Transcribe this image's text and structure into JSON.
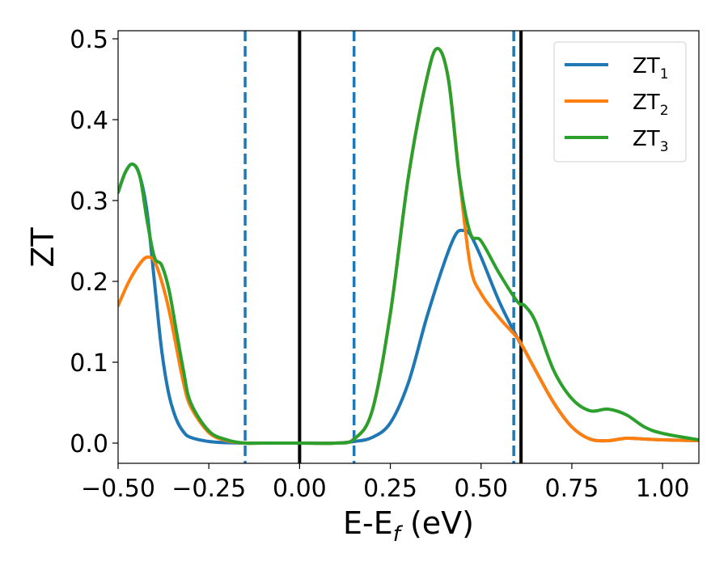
{
  "chart_data": {
    "type": "line",
    "xlabel_base": "E-E",
    "xlabel_sub": "f",
    "xlabel_unit": " (eV)",
    "ylabel": "ZT",
    "xlim": [
      -0.5,
      1.1
    ],
    "ylim": [
      -0.025,
      0.51
    ],
    "x_ticks": [
      -0.5,
      -0.25,
      0.0,
      0.25,
      0.5,
      0.75,
      1.0
    ],
    "x_tick_labels": [
      "−0.50",
      "−0.25",
      "0.00",
      "0.25",
      "0.50",
      "0.75",
      "1.00"
    ],
    "y_ticks": [
      0.0,
      0.1,
      0.2,
      0.3,
      0.4,
      0.5
    ],
    "y_tick_labels": [
      "0.0",
      "0.1",
      "0.2",
      "0.3",
      "0.4",
      "0.5"
    ],
    "grid": false,
    "legend_position": "top-right",
    "vlines": [
      {
        "x": -0.15,
        "style": "dashed",
        "color": "#1f77b4"
      },
      {
        "x": 0.15,
        "style": "dashed",
        "color": "#1f77b4"
      },
      {
        "x": 0.59,
        "style": "dashed",
        "color": "#1f77b4"
      },
      {
        "x": 0.0,
        "style": "solid",
        "color": "#000000"
      },
      {
        "x": 0.61,
        "style": "solid",
        "color": "#000000"
      }
    ],
    "series": [
      {
        "name_base": "ZT",
        "name_sub": "1",
        "color": "#1f77b4",
        "points": [
          [
            -0.5,
            0.31
          ],
          [
            -0.48,
            0.335
          ],
          [
            -0.46,
            0.345
          ],
          [
            -0.44,
            0.33
          ],
          [
            -0.42,
            0.285
          ],
          [
            -0.4,
            0.2
          ],
          [
            -0.38,
            0.115
          ],
          [
            -0.36,
            0.06
          ],
          [
            -0.34,
            0.03
          ],
          [
            -0.32,
            0.014
          ],
          [
            -0.3,
            0.007
          ],
          [
            -0.25,
            0.002
          ],
          [
            -0.2,
            0.0005
          ],
          [
            -0.15,
            0.0
          ],
          [
            -0.1,
            0.0
          ],
          [
            0.0,
            0.0
          ],
          [
            0.1,
            0.0
          ],
          [
            0.15,
            0.002
          ],
          [
            0.2,
            0.007
          ],
          [
            0.25,
            0.025
          ],
          [
            0.3,
            0.075
          ],
          [
            0.35,
            0.155
          ],
          [
            0.4,
            0.225
          ],
          [
            0.43,
            0.258
          ],
          [
            0.45,
            0.263
          ],
          [
            0.47,
            0.258
          ],
          [
            0.5,
            0.23
          ],
          [
            0.55,
            0.175
          ],
          [
            0.6,
            0.13
          ],
          [
            0.62,
            0.115
          ],
          [
            0.65,
            0.09
          ],
          [
            0.7,
            0.05
          ],
          [
            0.75,
            0.02
          ],
          [
            0.8,
            0.005
          ],
          [
            0.85,
            0.003
          ],
          [
            0.9,
            0.006
          ],
          [
            0.95,
            0.005
          ],
          [
            1.0,
            0.004
          ],
          [
            1.1,
            0.003
          ]
        ]
      },
      {
        "name_base": "ZT",
        "name_sub": "2",
        "color": "#ff7f0e",
        "points": [
          [
            -0.5,
            0.17
          ],
          [
            -0.47,
            0.2
          ],
          [
            -0.44,
            0.222
          ],
          [
            -0.42,
            0.23
          ],
          [
            -0.4,
            0.225
          ],
          [
            -0.38,
            0.2
          ],
          [
            -0.36,
            0.165
          ],
          [
            -0.34,
            0.12
          ],
          [
            -0.32,
            0.075
          ],
          [
            -0.3,
            0.045
          ],
          [
            -0.25,
            0.013
          ],
          [
            -0.2,
            0.003
          ],
          [
            -0.15,
            0.0
          ],
          [
            -0.1,
            0.0
          ],
          [
            0.0,
            0.0
          ],
          [
            0.1,
            0.0
          ],
          [
            0.15,
            0.005
          ],
          [
            0.2,
            0.04
          ],
          [
            0.25,
            0.16
          ],
          [
            0.3,
            0.33
          ],
          [
            0.35,
            0.45
          ],
          [
            0.38,
            0.488
          ],
          [
            0.41,
            0.45
          ],
          [
            0.44,
            0.33
          ],
          [
            0.47,
            0.22
          ],
          [
            0.5,
            0.185
          ],
          [
            0.55,
            0.155
          ],
          [
            0.6,
            0.13
          ],
          [
            0.62,
            0.115
          ],
          [
            0.65,
            0.09
          ],
          [
            0.7,
            0.05
          ],
          [
            0.75,
            0.02
          ],
          [
            0.8,
            0.005
          ],
          [
            0.85,
            0.003
          ],
          [
            0.9,
            0.006
          ],
          [
            0.95,
            0.005
          ],
          [
            1.0,
            0.004
          ],
          [
            1.1,
            0.003
          ]
        ]
      },
      {
        "name_base": "ZT",
        "name_sub": "3",
        "color": "#2ca02c",
        "points": [
          [
            -0.5,
            0.31
          ],
          [
            -0.48,
            0.335
          ],
          [
            -0.46,
            0.345
          ],
          [
            -0.44,
            0.33
          ],
          [
            -0.42,
            0.275
          ],
          [
            -0.4,
            0.23
          ],
          [
            -0.38,
            0.22
          ],
          [
            -0.36,
            0.19
          ],
          [
            -0.34,
            0.14
          ],
          [
            -0.32,
            0.09
          ],
          [
            -0.3,
            0.05
          ],
          [
            -0.25,
            0.015
          ],
          [
            -0.2,
            0.004
          ],
          [
            -0.15,
            0.0
          ],
          [
            -0.1,
            0.0
          ],
          [
            0.0,
            0.0
          ],
          [
            0.1,
            0.0
          ],
          [
            0.15,
            0.005
          ],
          [
            0.2,
            0.04
          ],
          [
            0.25,
            0.16
          ],
          [
            0.3,
            0.33
          ],
          [
            0.35,
            0.45
          ],
          [
            0.38,
            0.488
          ],
          [
            0.41,
            0.45
          ],
          [
            0.44,
            0.33
          ],
          [
            0.47,
            0.26
          ],
          [
            0.5,
            0.25
          ],
          [
            0.55,
            0.21
          ],
          [
            0.6,
            0.175
          ],
          [
            0.62,
            0.17
          ],
          [
            0.65,
            0.15
          ],
          [
            0.7,
            0.09
          ],
          [
            0.75,
            0.055
          ],
          [
            0.8,
            0.04
          ],
          [
            0.85,
            0.042
          ],
          [
            0.9,
            0.035
          ],
          [
            0.95,
            0.02
          ],
          [
            1.0,
            0.012
          ],
          [
            1.1,
            0.004
          ]
        ]
      }
    ]
  }
}
